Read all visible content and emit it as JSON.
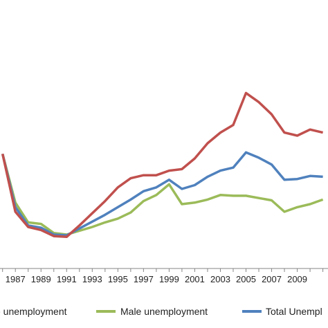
{
  "chart_data": {
    "type": "line",
    "x": [
      1986,
      1987,
      1988,
      1989,
      1990,
      1991,
      1992,
      1993,
      1994,
      1995,
      1996,
      1997,
      1998,
      1999,
      2000,
      2001,
      2002,
      2003,
      2004,
      2005,
      2006,
      2007,
      2008,
      2009,
      2010,
      2011
    ],
    "x_tick_labels": [
      "1987",
      "1989",
      "1991",
      "1993",
      "1995",
      "1997",
      "1999",
      "2001",
      "2003",
      "2005",
      "2007",
      "2009"
    ],
    "x_tick_values": [
      1987,
      1989,
      1991,
      1993,
      1995,
      1997,
      1999,
      2001,
      2003,
      2005,
      2007,
      2009
    ],
    "xlim": [
      1985.8,
      2011.4
    ],
    "ylim": [
      0,
      100
    ],
    "grid": false,
    "legend_position": "bottom",
    "series": [
      {
        "name": "Female unemployment",
        "legend_label": "e unemployment",
        "color": "#c0504d",
        "values": [
          58,
          20,
          10,
          8,
          4,
          3.5,
          11,
          19,
          27,
          36,
          42,
          44,
          44,
          47,
          48,
          55,
          65,
          72,
          77,
          98,
          92,
          84,
          72,
          70,
          74,
          72
        ]
      },
      {
        "name": "Male unemployment",
        "legend_label": "Male unemployment",
        "color": "#9bbb59",
        "values": [
          58,
          26,
          13,
          12,
          6,
          5,
          7.5,
          10,
          13,
          15.5,
          19.5,
          27,
          31,
          38,
          25,
          26,
          28,
          31,
          30.5,
          30.5,
          29,
          27.5,
          20,
          23,
          25,
          28
        ]
      },
      {
        "name": "Total Unemployment",
        "legend_label": "Total Unempl",
        "color": "#4f81bd",
        "values": [
          58,
          23,
          11,
          9.5,
          5,
          4.5,
          9,
          13.5,
          18,
          23,
          28,
          33.5,
          36,
          41,
          35,
          37.5,
          43,
          47,
          49,
          59,
          55.5,
          51,
          41,
          41.5,
          43.5,
          43
        ]
      }
    ]
  }
}
